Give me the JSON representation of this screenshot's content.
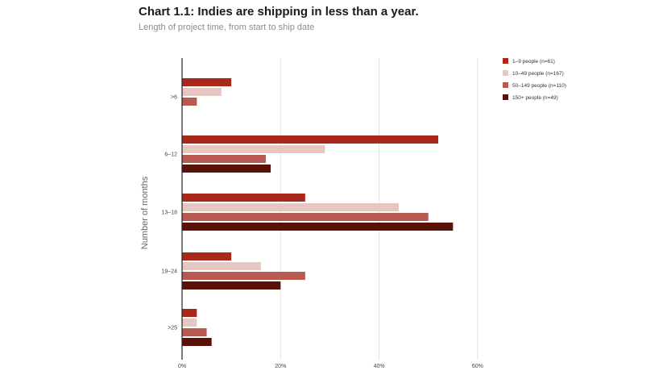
{
  "chart_data": {
    "type": "bar",
    "orientation": "horizontal",
    "title": "Chart 1.1: Indies are shipping in less than a year.",
    "subtitle": "Length of project time, from start to ship date",
    "ylabel": "Number of months",
    "xlabel": "",
    "categories": [
      ">6",
      "6–12",
      "13–18",
      "19–24",
      ">25"
    ],
    "series": [
      {
        "name": "1–9 people (n=61)",
        "color": "#a8281a",
        "values": [
          10,
          52,
          25,
          10,
          3
        ]
      },
      {
        "name": "10–49 people (n=167)",
        "color": "#e6c6c1",
        "values": [
          8,
          29,
          44,
          16,
          3
        ]
      },
      {
        "name": "50–149 people (n=110)",
        "color": "#b85a4f",
        "values": [
          3,
          17,
          50,
          25,
          5
        ]
      },
      {
        "name": "150+ people (n=49)",
        "color": "#5a1208",
        "values": [
          0,
          18,
          55,
          20,
          6
        ]
      }
    ],
    "xlim": [
      0,
      60
    ],
    "xticks": [
      "0%",
      "20%",
      "40%",
      "60%"
    ],
    "grid": true,
    "legend": "top-right"
  }
}
